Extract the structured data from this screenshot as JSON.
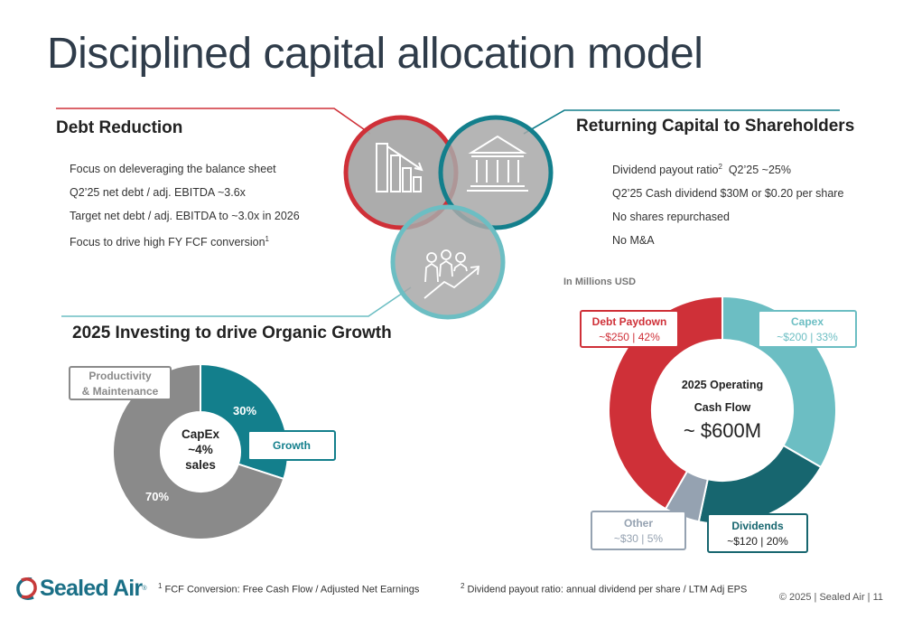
{
  "page": {
    "title": "Disciplined capital allocation model"
  },
  "debt_reduction": {
    "heading": "Debt Reduction",
    "bullets": [
      "Focus on deleveraging the balance sheet",
      "Q2’25 net debt / adj. EBITDA  ~3.6x",
      "Target net debt / adj. EBITDA to ~3.0x in 2026",
      "Focus to drive high FY FCF conversion"
    ],
    "bullet_4_sup": "1"
  },
  "returning_capital": {
    "heading": "Returning Capital to Shareholders",
    "bullets": [
      "Dividend payout ratio",
      "Q2’25 Cash dividend $30M or $0.20 per share",
      "No shares repurchased",
      "No M&A"
    ],
    "bullet_1_sup": "2",
    "bullet_1_suffix": "  Q2’25 ~25%"
  },
  "investing": {
    "heading": "2025 Investing to drive Organic Growth",
    "center_lines": [
      "CapEx",
      "~4%",
      "sales"
    ],
    "growth_pct": "30%",
    "maintenance_pct": "70%",
    "growth_label": "Growth",
    "maintenance_label_lines": [
      "Productivity",
      "& Maintenance"
    ]
  },
  "operating_cash": {
    "unit_label": "In Millions USD",
    "center_lines": [
      "2025 Operating",
      "Cash Flow"
    ],
    "center_value": "~ $600M",
    "callouts": {
      "debt": {
        "name": "Debt Paydown",
        "value": "~$250 | 42%"
      },
      "capex": {
        "name": "Capex",
        "value": "~$200 | 33%"
      },
      "dividends": {
        "name": "Dividends",
        "value": "~$120 | 20%"
      },
      "other": {
        "name": "Other",
        "value": "~$30 | 5%"
      }
    }
  },
  "chart_data": [
    {
      "type": "pie",
      "title": "",
      "categories": [
        "Growth",
        "Productivity & Maintenance"
      ],
      "values": [
        30,
        70
      ],
      "unit": "%",
      "colors": [
        "#137f8c",
        "#8a8a8a"
      ]
    },
    {
      "type": "pie",
      "title": "",
      "categories": [
        "Capex",
        "Dividends",
        "Other",
        "Debt Paydown"
      ],
      "values": [
        200,
        120,
        30,
        250
      ],
      "percents": [
        33,
        20,
        5,
        42
      ],
      "unit": "Millions USD",
      "colors": [
        "#6cbec3",
        "#17666f",
        "#95a2b1",
        "#cf3038"
      ]
    }
  ],
  "footnotes": {
    "fn1_sup": "1",
    "fn1_text": "FCF Conversion: Free Cash Flow / Adjusted Net Earnings",
    "fn2_sup": "2",
    "fn2_text": "Dividend payout ratio: annual dividend per share / LTM Adj EPS",
    "copyright": "© 2025  |  Sealed Air  |  11"
  },
  "logo": {
    "text": "Sealed Air",
    "reg": "®"
  },
  "icons": [
    "declining-bar-chart-icon",
    "bank-building-icon",
    "people-growth-icon"
  ],
  "colors": {
    "red": "#cf3038",
    "teal": "#137f8c",
    "light_teal": "#6cbec3",
    "dark_teal": "#17666f",
    "gray": "#8a8a8a",
    "title": "#2f3c4a"
  }
}
